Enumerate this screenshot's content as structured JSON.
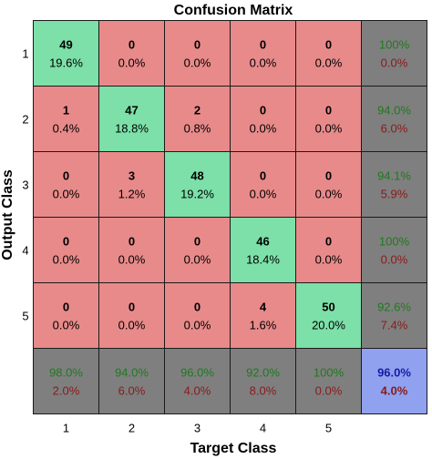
{
  "chart_data": {
    "type": "heatmap",
    "title": "Confusion Matrix",
    "xlabel": "Target Class",
    "ylabel": "Output Class",
    "x_ticks": [
      "1",
      "2",
      "3",
      "4",
      "5"
    ],
    "y_ticks": [
      "1",
      "2",
      "3",
      "4",
      "5"
    ],
    "counts": [
      [
        49,
        0,
        0,
        0,
        0
      ],
      [
        1,
        47,
        2,
        0,
        0
      ],
      [
        0,
        3,
        48,
        0,
        0
      ],
      [
        0,
        0,
        0,
        46,
        0
      ],
      [
        0,
        0,
        0,
        4,
        50
      ]
    ],
    "percents": [
      [
        "19.6%",
        "0.0%",
        "0.0%",
        "0.0%",
        "0.0%"
      ],
      [
        "0.4%",
        "18.8%",
        "0.8%",
        "0.0%",
        "0.0%"
      ],
      [
        "0.0%",
        "1.2%",
        "19.2%",
        "0.0%",
        "0.0%"
      ],
      [
        "0.0%",
        "0.0%",
        "0.0%",
        "18.4%",
        "0.0%"
      ],
      [
        "0.0%",
        "0.0%",
        "0.0%",
        "1.6%",
        "20.0%"
      ]
    ],
    "row_summary": [
      {
        "correct": "100%",
        "error": "0.0%"
      },
      {
        "correct": "94.0%",
        "error": "6.0%"
      },
      {
        "correct": "94.1%",
        "error": "5.9%"
      },
      {
        "correct": "100%",
        "error": "0.0%"
      },
      {
        "correct": "92.6%",
        "error": "7.4%"
      }
    ],
    "col_summary": [
      {
        "correct": "98.0%",
        "error": "2.0%"
      },
      {
        "correct": "94.0%",
        "error": "6.0%"
      },
      {
        "correct": "96.0%",
        "error": "4.0%"
      },
      {
        "correct": "92.0%",
        "error": "8.0%"
      },
      {
        "correct": "100%",
        "error": "0.0%"
      }
    ],
    "overall": {
      "correct": "96.0%",
      "error": "4.0%"
    },
    "colors": {
      "diagonal": "#7ce0a8",
      "off_diagonal": "#e88a8a",
      "summary": "#7f7f7f",
      "overall": "#8fa1ef",
      "correct_text": "#1e7a1e",
      "error_text": "#8b1a1a",
      "overall_correct_text": "#1a1aa6",
      "overall_error_text": "#8b1a1a",
      "cell_text": "#000000",
      "border": "#1a1a1a"
    }
  }
}
